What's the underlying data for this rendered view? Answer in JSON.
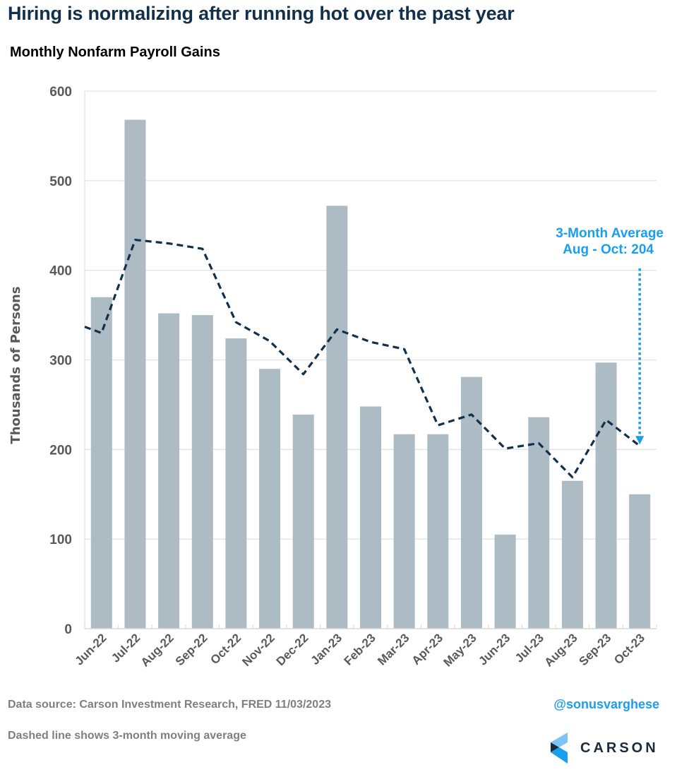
{
  "header": {
    "title": "Hiring is normalizing after running hot over the past year",
    "subtitle": "Monthly Nonfarm Payroll Gains"
  },
  "footer": {
    "source": "Data source: Carson Investment Research, FRED   11/03/2023",
    "note": "Dashed line shows 3-month moving average",
    "handle": "@sonusvarghese",
    "logo_text": "CARSON",
    "logo_icon": "carson-chevron-logo-icon"
  },
  "colors": {
    "title": "#12304a",
    "bar": "#adbbc5",
    "line": "#12304a",
    "annotation": "#1a9ef0",
    "grid": "#e3e3e3",
    "tick_text": "#595959"
  },
  "chart_data": {
    "type": "bar",
    "title": "Monthly Nonfarm Payroll Gains",
    "xlabel": "",
    "ylabel": "Thousands of Persons",
    "ylim": [
      0,
      600
    ],
    "yticks": [
      0,
      100,
      200,
      300,
      400,
      500,
      600
    ],
    "grid": true,
    "legend": "none",
    "categories": [
      "Jun-22",
      "Jul-22",
      "Aug-22",
      "Sep-22",
      "Oct-22",
      "Nov-22",
      "Dec-22",
      "Jan-23",
      "Feb-23",
      "Mar-23",
      "Apr-23",
      "May-23",
      "Jun-23",
      "Jul-23",
      "Aug-23",
      "Sep-23",
      "Oct-23"
    ],
    "series": [
      {
        "name": "Monthly Nonfarm Payroll Gains",
        "type": "bar",
        "values": [
          370,
          568,
          352,
          350,
          324,
          290,
          239,
          472,
          248,
          217,
          217,
          281,
          105,
          236,
          165,
          297,
          150
        ]
      },
      {
        "name": "3-month moving average",
        "type": "line",
        "style": "dashed",
        "start_value_at_left_edge": 337,
        "values": [
          330,
          434,
          430,
          424,
          342,
          321,
          284,
          334,
          320,
          312,
          227,
          239,
          201,
          207,
          169,
          233,
          204
        ]
      }
    ],
    "annotations": [
      {
        "text_line1": "3-Month Average",
        "text_line2": "Aug - Oct: 204",
        "target_category": "Oct-23",
        "target_value": 204,
        "arrow": "dotted-down"
      }
    ]
  }
}
